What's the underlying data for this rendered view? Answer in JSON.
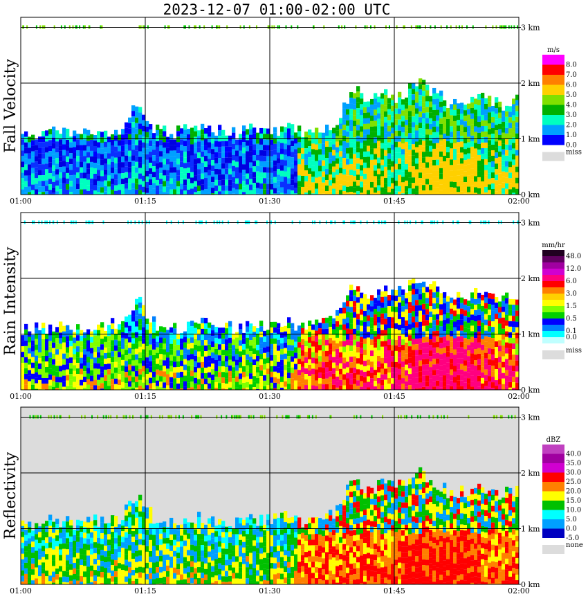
{
  "title": "2023-12-07   01:00-02:00 UTC",
  "x_ticks": [
    "01:00",
    "01:15",
    "01:30",
    "01:45",
    "02:00"
  ],
  "y_ticks": [
    "0 km",
    "1 km",
    "2 km",
    "3 km"
  ],
  "chart_data": [
    {
      "type": "heatmap",
      "panel": "Fall Velocity",
      "ylabel": "Fall Velocity",
      "xlabel": "",
      "xlim": [
        "01:00",
        "02:00"
      ],
      "ylim": [
        0,
        3.15
      ],
      "colorbar": {
        "unit": "m/s",
        "levels": [
          "8.0",
          "7.0",
          "6.0",
          "5.0",
          "4.0",
          "3.0",
          "2.0",
          "1.0",
          "0.0"
        ],
        "colors": [
          "#ff00ff",
          "#ff0000",
          "#ff8000",
          "#ffd000",
          "#80e000",
          "#00b000",
          "#00ffc0",
          "#00a0ff",
          "#0000ff"
        ],
        "missing_label": "miss",
        "missing_color": "#dcdcdc"
      },
      "cloud_top_km": [
        1.05,
        1.1,
        1.15,
        1.1,
        1.12,
        1.15,
        1.2,
        1.6,
        1.2,
        1.1,
        1.15,
        1.2,
        1.15,
        1.1,
        1.18,
        1.15,
        1.2,
        1.1,
        1.2,
        1.25,
        1.9,
        1.7,
        1.8,
        1.75,
        2.0,
        1.85,
        1.6,
        1.7,
        1.75,
        1.6,
        1.7
      ]
    },
    {
      "type": "heatmap",
      "panel": "Rain Intensity",
      "ylabel": "Rain Intensity",
      "xlabel": "",
      "xlim": [
        "01:00",
        "02:00"
      ],
      "ylim": [
        0,
        3.15
      ],
      "colorbar": {
        "unit": "mm/hr",
        "levels": [
          "48.0",
          "",
          "12.0",
          "",
          "6.0",
          "",
          "3.0",
          "",
          "1.5",
          "",
          "0.5",
          "",
          "0.1",
          "0.0"
        ],
        "colors": [
          "#200020",
          "#600060",
          "#a000a0",
          "#d000d0",
          "#ff0080",
          "#ff0000",
          "#ff8000",
          "#ffd000",
          "#ffff00",
          "#80ff00",
          "#00d000",
          "#0000ff",
          "#0080ff",
          "#00ffff",
          "#c0ffff"
        ],
        "missing_label": "miss",
        "missing_color": "#dcdcdc"
      },
      "cloud_top_km": [
        1.05,
        1.1,
        1.15,
        1.1,
        1.12,
        1.15,
        1.2,
        1.6,
        1.2,
        1.1,
        1.15,
        1.2,
        1.15,
        1.1,
        1.18,
        1.15,
        1.2,
        1.1,
        1.2,
        1.25,
        1.9,
        1.7,
        1.8,
        1.75,
        2.0,
        1.85,
        1.6,
        1.7,
        1.75,
        1.6,
        1.7
      ]
    },
    {
      "type": "heatmap",
      "panel": "Reflectivity",
      "ylabel": "Reflectivity",
      "xlabel": "",
      "xlim": [
        "01:00",
        "02:00"
      ],
      "ylim": [
        0,
        3.15
      ],
      "colorbar": {
        "unit": "dBZ",
        "levels": [
          "40.0",
          "35.0",
          "30.0",
          "25.0",
          "20.0",
          "15.0",
          "10.0",
          "5.0",
          "0.0",
          "-5.0"
        ],
        "colors": [
          "#c040c0",
          "#a000a0",
          "#d000d0",
          "#ff0000",
          "#ff8000",
          "#ffff00",
          "#00c000",
          "#00ffff",
          "#00a0ff",
          "#0000c0"
        ],
        "missing_label": "none",
        "missing_color": "#dcdcdc"
      },
      "cloud_top_km": [
        1.05,
        1.1,
        1.15,
        1.1,
        1.12,
        1.15,
        1.2,
        1.6,
        1.2,
        1.1,
        1.15,
        1.2,
        1.15,
        1.1,
        1.18,
        1.15,
        1.2,
        1.1,
        1.2,
        1.25,
        1.9,
        1.7,
        1.8,
        1.75,
        2.0,
        1.85,
        1.6,
        1.7,
        1.75,
        1.6,
        1.7
      ]
    }
  ]
}
